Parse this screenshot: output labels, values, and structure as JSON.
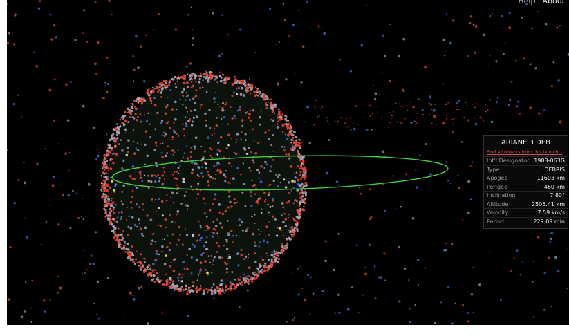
{
  "header": {
    "links": [
      "Help",
      "About"
    ]
  },
  "info_panel": {
    "title": "ARIANE 3 DEB",
    "link": "Find all objects from this launch...",
    "rows": [
      [
        "Int'l Designator",
        "1988-063G"
      ],
      [
        "Type",
        "DEBRIS"
      ],
      [
        "Apogee",
        "11603 km"
      ],
      [
        "Perigee",
        "460 km"
      ],
      [
        "Inclination",
        "7.80°"
      ],
      [
        "Altitude",
        "2505.41 km"
      ],
      [
        "Velocity",
        "7.59 km/s"
      ],
      [
        "Period",
        "229.09 min"
      ]
    ]
  }
}
